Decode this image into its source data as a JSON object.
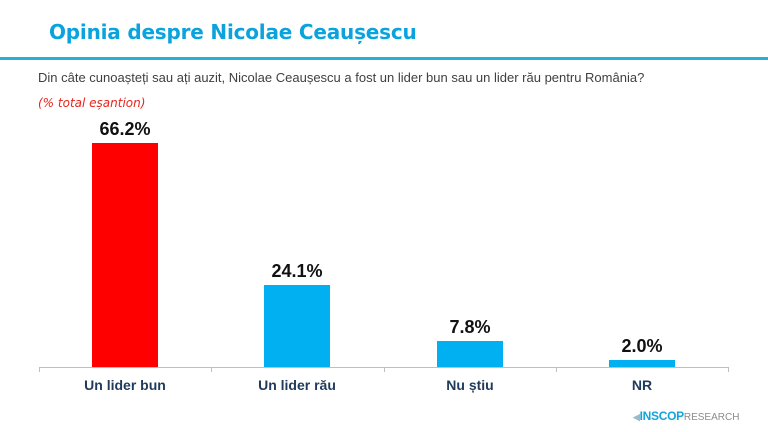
{
  "header": {
    "title": "Opinia despre Nicolae Ceaușescu",
    "question": "Din câte cunoașteți sau ați auzit, Nicolae Ceaușescu a fost un lider bun sau un lider rău pentru România?",
    "subtitle": "(% total eșantion)"
  },
  "colors": {
    "title": "#0aa3dd",
    "rule": "#25b0d6",
    "highlight_bar": "#ff0000",
    "bar": "#00b0f0",
    "subtitle": "#e8251c"
  },
  "chart_data": {
    "type": "bar",
    "title": "Opinia despre Nicolae Ceaușescu",
    "subtitle": "(% total eșantion)",
    "categories": [
      "Un lider bun",
      "Un lider rău",
      "Nu știu",
      "NR"
    ],
    "values": [
      66.2,
      24.1,
      7.8,
      2.0
    ],
    "value_labels": [
      "66.2%",
      "24.1%",
      "7.8%",
      "2.0%"
    ],
    "bar_colors": [
      "#ff0000",
      "#00b0f0",
      "#00b0f0",
      "#00b0f0"
    ],
    "xlabel": "",
    "ylabel": "",
    "ylim": [
      0,
      70
    ],
    "grid": false,
    "legend": "none"
  },
  "footer": {
    "logo_brand": "INSCOP",
    "logo_suffix": "RESEARCH",
    "logo_mark": "◀"
  }
}
